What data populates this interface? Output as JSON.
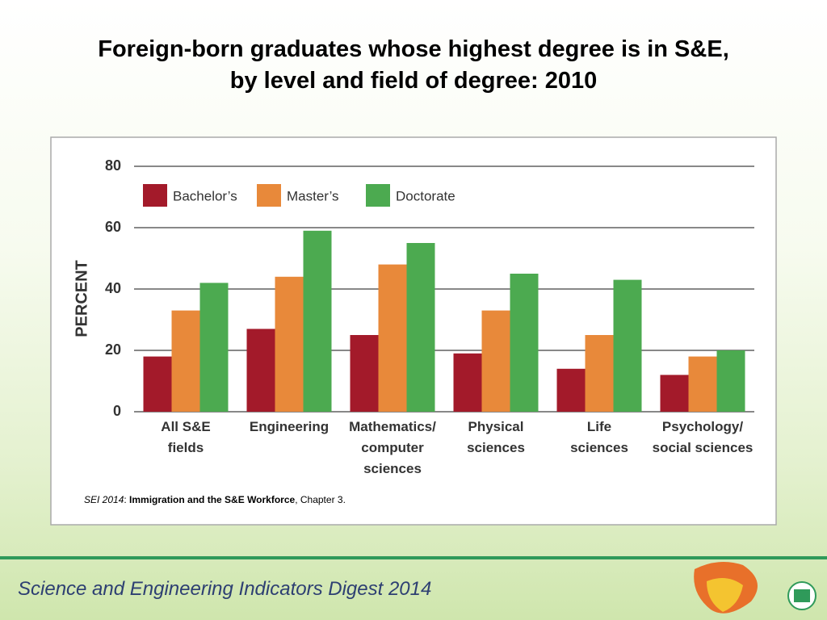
{
  "chart_data": {
    "type": "bar",
    "title": "Foreign-born graduates whose highest degree is in S&E,\nby level and field of degree: 2010",
    "y_label": "PERCENT",
    "categories": [
      "All S&E\nfields",
      "Engineering",
      "Mathematics/\ncomputer\nsciences",
      "Physical\nsciences",
      "Life\nsciences",
      "Psychology/\nsocial sciences"
    ],
    "series": [
      {
        "name": "Bachelor’s",
        "color": "#a31a2a",
        "values": [
          18,
          27,
          25,
          19,
          14,
          12
        ]
      },
      {
        "name": "Master’s",
        "color": "#e8893a",
        "values": [
          33,
          44,
          48,
          33,
          25,
          18
        ]
      },
      {
        "name": "Doctorate",
        "color": "#4caa50",
        "values": [
          42,
          59,
          55,
          45,
          43,
          20
        ]
      }
    ],
    "ylim": [
      0,
      80
    ],
    "yticks": [
      0,
      20,
      40,
      60,
      80
    ],
    "grid": true,
    "legend": "top-left",
    "source": [
      "SEI 2014",
      ": ",
      "Immigration and the S&E Workforce",
      ", Chapter 3."
    ]
  },
  "footer": "Science and Engineering Indicators Digest 2014"
}
